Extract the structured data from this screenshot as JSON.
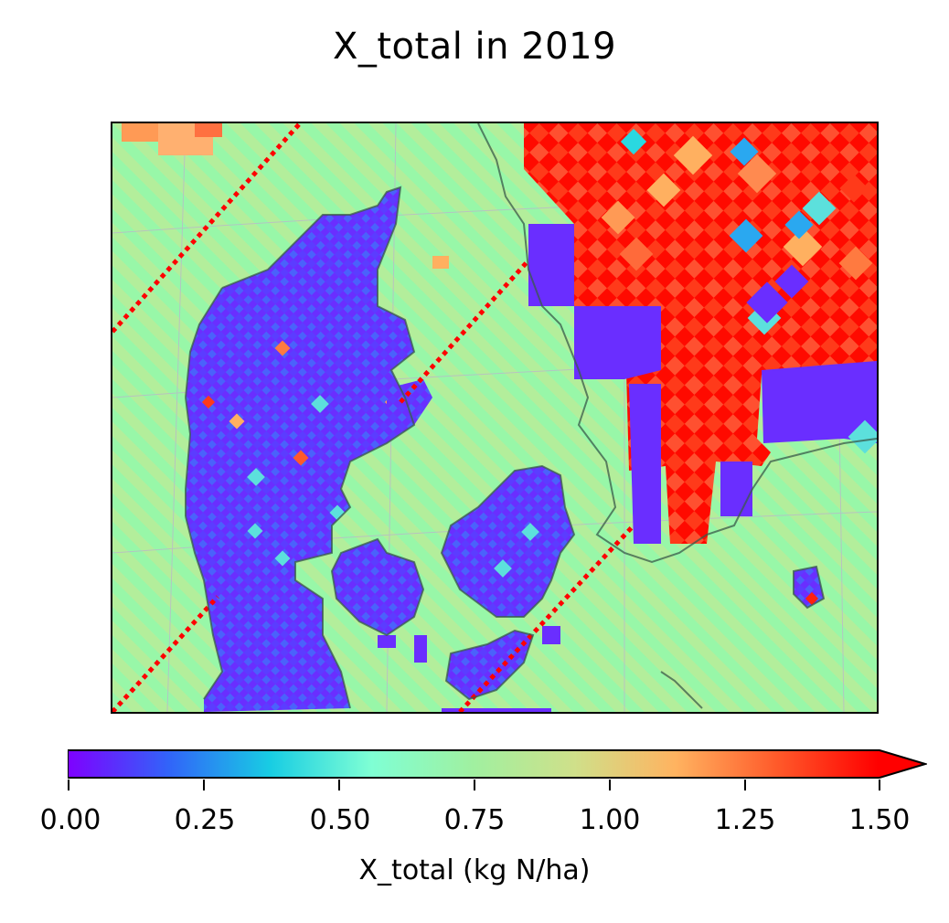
{
  "title": "X_total in 2019",
  "colorbar": {
    "label": "X_total (kg N/ha)",
    "ticks": [
      "0.00",
      "0.25",
      "0.50",
      "0.75",
      "1.00",
      "1.25",
      "1.50"
    ],
    "min": 0.0,
    "max": 1.5,
    "extend": "max",
    "colormap": "rainbow",
    "stops": [
      "#7f00ff",
      "#3164f9",
      "#18cde3",
      "#7fffd4",
      "#a0f0a0",
      "#cfe08a",
      "#ffb360",
      "#ff5a2a",
      "#ff0000"
    ]
  },
  "map": {
    "region": "Denmark",
    "background_color": "#98f7a8",
    "colors": {
      "low": "#6a2eff",
      "low_mid": "#3f8cf5",
      "mid": "#5ae0dc",
      "background": "#98f7a8",
      "high": "#ff2010",
      "high_mid": "#ff7a40",
      "stripe": "#d4e28c",
      "coast": "#3a5a4a"
    }
  }
}
